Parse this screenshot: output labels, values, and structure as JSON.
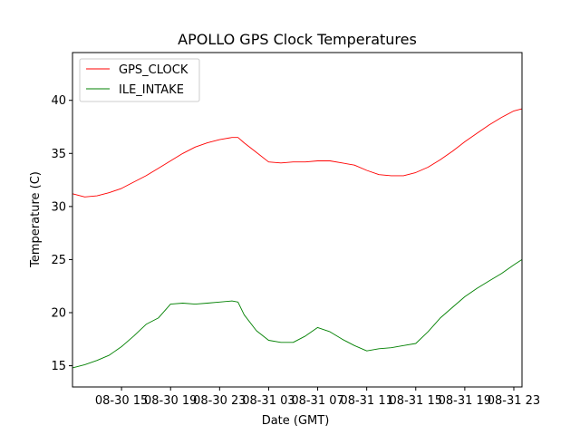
{
  "chart_data": {
    "type": "line",
    "title": "APOLLO GPS Clock Temperatures",
    "xlabel": "Date (GMT)",
    "ylabel": "Temperature (C)",
    "x_unit": "hours",
    "xlim": [
      "08-30 11:00",
      "08-31 23:40"
    ],
    "ylim": [
      13,
      44.5
    ],
    "yticks": [
      15,
      20,
      25,
      30,
      35,
      40
    ],
    "xticks": [
      {
        "x": "08-30 15:00",
        "label": "08-30 15"
      },
      {
        "x": "08-30 19:00",
        "label": "08-30 19"
      },
      {
        "x": "08-30 23:00",
        "label": "08-30 23"
      },
      {
        "x": "08-31 03:00",
        "label": "08-31 03"
      },
      {
        "x": "08-31 07:00",
        "label": "08-31 07"
      },
      {
        "x": "08-31 11:00",
        "label": "08-31 11"
      },
      {
        "x": "08-31 15:00",
        "label": "08-31 15"
      },
      {
        "x": "08-31 19:00",
        "label": "08-31 19"
      },
      {
        "x": "08-31 23:00",
        "label": "08-31 23"
      }
    ],
    "grid": false,
    "legend": {
      "position": "top-left"
    },
    "series": [
      {
        "name": "GPS_CLOCK",
        "color": "#ff0000",
        "x": [
          "08-30 11:00",
          "08-30 12:00",
          "08-30 13:00",
          "08-30 14:00",
          "08-30 15:00",
          "08-30 16:00",
          "08-30 17:00",
          "08-30 18:00",
          "08-30 19:00",
          "08-30 20:00",
          "08-30 21:00",
          "08-30 22:00",
          "08-30 23:00",
          "08-31 00:00",
          "08-31 00:30",
          "08-31 01:00",
          "08-31 02:00",
          "08-31 03:00",
          "08-31 04:00",
          "08-31 05:00",
          "08-31 06:00",
          "08-31 07:00",
          "08-31 08:00",
          "08-31 09:00",
          "08-31 10:00",
          "08-31 11:00",
          "08-31 12:00",
          "08-31 13:00",
          "08-31 14:00",
          "08-31 15:00",
          "08-31 16:00",
          "08-31 17:00",
          "08-31 18:00",
          "08-31 19:00",
          "08-31 20:00",
          "08-31 21:00",
          "08-31 22:00",
          "08-31 23:00",
          "08-31 23:40"
        ],
        "values": [
          31.2,
          30.9,
          31.0,
          31.3,
          31.7,
          32.3,
          32.9,
          33.6,
          34.3,
          35.0,
          35.6,
          36.0,
          36.3,
          36.5,
          36.5,
          36.0,
          35.1,
          34.2,
          34.1,
          34.2,
          34.2,
          34.3,
          34.3,
          34.1,
          33.9,
          33.4,
          33.0,
          32.9,
          32.9,
          33.2,
          33.7,
          34.4,
          35.2,
          36.1,
          36.9,
          37.7,
          38.4,
          39.0,
          39.2
        ]
      },
      {
        "name": "ILE_INTAKE",
        "color": "#008000",
        "x": [
          "08-30 11:00",
          "08-30 12:00",
          "08-30 13:00",
          "08-30 14:00",
          "08-30 15:00",
          "08-30 16:00",
          "08-30 17:00",
          "08-30 18:00",
          "08-30 19:00",
          "08-30 20:00",
          "08-30 21:00",
          "08-30 22:00",
          "08-30 23:00",
          "08-31 00:00",
          "08-31 00:30",
          "08-31 01:00",
          "08-31 02:00",
          "08-31 03:00",
          "08-31 04:00",
          "08-31 05:00",
          "08-31 06:00",
          "08-31 07:00",
          "08-31 08:00",
          "08-31 09:00",
          "08-31 10:00",
          "08-31 11:00",
          "08-31 12:00",
          "08-31 13:00",
          "08-31 14:00",
          "08-31 15:00",
          "08-31 16:00",
          "08-31 17:00",
          "08-31 18:00",
          "08-31 19:00",
          "08-31 20:00",
          "08-31 21:00",
          "08-31 22:00",
          "08-31 23:00",
          "08-31 23:40"
        ],
        "values": [
          14.8,
          15.1,
          15.5,
          16.0,
          16.8,
          17.8,
          18.9,
          19.5,
          20.8,
          20.9,
          20.8,
          20.9,
          21.0,
          21.1,
          21.0,
          19.8,
          18.3,
          17.4,
          17.2,
          17.2,
          17.8,
          18.6,
          18.2,
          17.5,
          16.9,
          16.4,
          16.6,
          16.7,
          16.9,
          17.1,
          18.2,
          19.5,
          20.5,
          21.5,
          22.3,
          23.0,
          23.7,
          24.5,
          25.0
        ]
      }
    ]
  }
}
